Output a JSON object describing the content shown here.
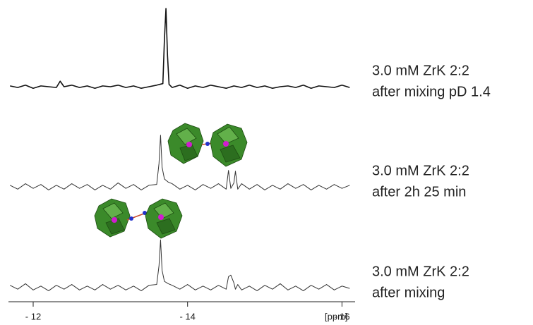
{
  "chart_data": {
    "type": "line",
    "x_label": "[ppm]",
    "xlim": [
      -11.68,
      -16.17
    ],
    "xticks": [
      {
        "value": -12,
        "label": "- 12"
      },
      {
        "value": -14,
        "label": "- 14"
      },
      {
        "value": -16,
        "label": "- 16"
      }
    ],
    "ylim": [
      0,
      100
    ],
    "series": [
      {
        "name": "3.0 mM ZrK 2:2",
        "condition": "after mixing pD 1.4",
        "color": "#111111",
        "x": [
          -11.7,
          -11.8,
          -11.9,
          -12.0,
          -12.1,
          -12.2,
          -12.3,
          -12.35,
          -12.4,
          -12.5,
          -12.6,
          -12.7,
          -12.8,
          -12.9,
          -13.0,
          -13.1,
          -13.2,
          -13.3,
          -13.4,
          -13.5,
          -13.6,
          -13.68,
          -13.7,
          -13.72,
          -13.74,
          -13.76,
          -13.8,
          -13.9,
          -14.0,
          -14.1,
          -14.2,
          -14.3,
          -14.4,
          -14.5,
          -14.6,
          -14.7,
          -14.8,
          -14.9,
          -15.0,
          -15.1,
          -15.2,
          -15.3,
          -15.4,
          -15.5,
          -15.6,
          -15.7,
          -15.8,
          -15.9,
          -16.0,
          -16.1
        ],
        "values": [
          1,
          -1,
          2,
          -2,
          1,
          0,
          -1,
          7,
          0,
          2,
          -1,
          1,
          -2,
          1,
          0,
          2,
          -1,
          1,
          -2,
          0,
          2,
          4,
          60,
          100,
          40,
          3,
          -1,
          2,
          -2,
          1,
          -1,
          2,
          0,
          -2,
          1,
          -1,
          2,
          -1,
          1,
          -2,
          0,
          1,
          -1,
          2,
          -2,
          1,
          0,
          -1,
          2,
          -1
        ]
      },
      {
        "name": "3.0 mM ZrK 2:2",
        "condition": "after 2h 25 min",
        "color": "#333333",
        "x": [
          -11.7,
          -11.8,
          -11.9,
          -12.0,
          -12.1,
          -12.2,
          -12.3,
          -12.4,
          -12.5,
          -12.6,
          -12.7,
          -12.8,
          -12.9,
          -13.0,
          -13.1,
          -13.2,
          -13.3,
          -13.4,
          -13.5,
          -13.6,
          -13.63,
          -13.65,
          -13.67,
          -13.7,
          -13.75,
          -13.8,
          -13.9,
          -14.0,
          -14.1,
          -14.2,
          -14.3,
          -14.4,
          -14.5,
          -14.53,
          -14.56,
          -14.6,
          -14.62,
          -14.65,
          -14.7,
          -14.8,
          -14.9,
          -15.0,
          -15.1,
          -15.2,
          -15.3,
          -15.4,
          -15.5,
          -15.6,
          -15.7,
          -15.8,
          -15.9,
          -16.0,
          -16.1
        ],
        "values": [
          2,
          -3,
          4,
          -2,
          3,
          -4,
          2,
          -3,
          4,
          -2,
          3,
          -4,
          2,
          -3,
          5,
          -2,
          3,
          -4,
          2,
          3,
          30,
          66,
          25,
          10,
          6,
          4,
          -3,
          2,
          -4,
          3,
          -2,
          4,
          -3,
          21,
          -2,
          5,
          20,
          -3,
          4,
          -3,
          3,
          -4,
          2,
          -3,
          4,
          -2,
          3,
          -4,
          2,
          -3,
          3,
          -2,
          2
        ]
      },
      {
        "name": "3.0 mM ZrK 2:2",
        "condition": "after mixing",
        "color": "#333333",
        "x": [
          -11.7,
          -11.8,
          -11.9,
          -12.0,
          -12.1,
          -12.2,
          -12.3,
          -12.4,
          -12.5,
          -12.6,
          -12.7,
          -12.8,
          -12.9,
          -13.0,
          -13.1,
          -13.2,
          -13.3,
          -13.4,
          -13.5,
          -13.6,
          -13.63,
          -13.65,
          -13.67,
          -13.7,
          -13.75,
          -13.8,
          -13.9,
          -14.0,
          -14.1,
          -14.2,
          -14.3,
          -14.4,
          -14.5,
          -14.53,
          -14.56,
          -14.6,
          -14.62,
          -14.65,
          -14.7,
          -14.8,
          -14.9,
          -15.0,
          -15.1,
          -15.2,
          -15.3,
          -15.4,
          -15.5,
          -15.6,
          -15.7,
          -15.8,
          -15.9,
          -16.0,
          -16.1
        ],
        "values": [
          3,
          -2,
          5,
          -3,
          2,
          -4,
          3,
          -2,
          4,
          -3,
          2,
          -3,
          4,
          -2,
          3,
          -3,
          2,
          -4,
          3,
          4,
          28,
          61,
          22,
          8,
          5,
          3,
          -2,
          4,
          -3,
          2,
          -3,
          3,
          -2,
          14,
          16,
          6,
          -2,
          4,
          -3,
          2,
          -4,
          3,
          -2,
          5,
          -3,
          2,
          -4,
          3,
          -2,
          4,
          -3,
          2,
          -1
        ]
      }
    ]
  }
}
